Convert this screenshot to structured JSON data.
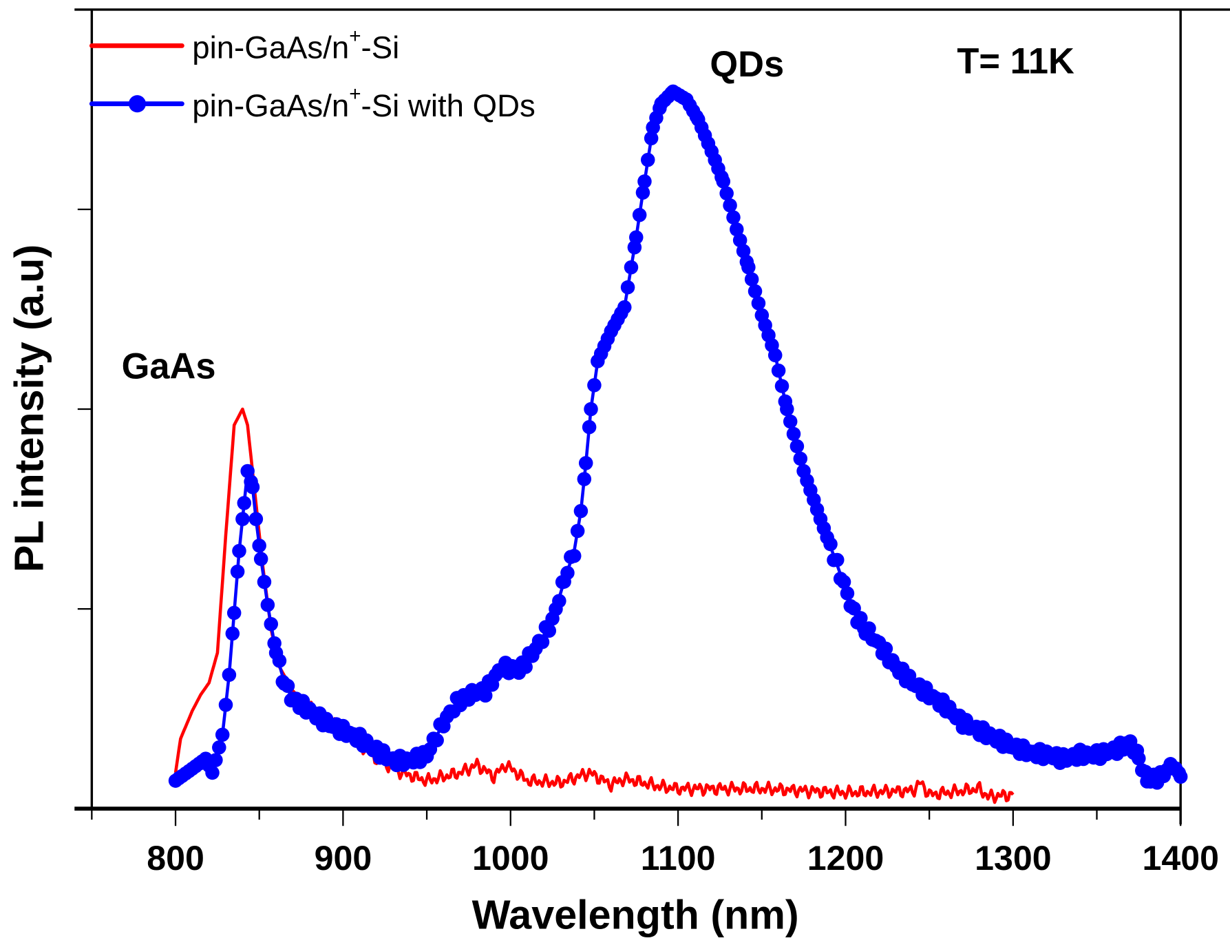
{
  "chart_data": {
    "type": "line",
    "title": "",
    "xlabel": "Wavelength (nm)",
    "ylabel": "PL intensity (a.u)",
    "xlim": [
      750,
      1400
    ],
    "ylim": [
      0,
      4
    ],
    "xticks": [
      800,
      900,
      1000,
      1100,
      1200,
      1300,
      1400
    ],
    "xtick_labels": [
      "800",
      "900",
      "1000",
      "1100",
      "1200",
      "1300",
      "1400"
    ],
    "grid": false,
    "legend_position": "top-left",
    "annotations": {
      "gaas": "GaAs",
      "qds": "QDs",
      "temperature": "T= 11K"
    },
    "series": [
      {
        "label_base": "pin-GaAs/n",
        "label_sup": "+",
        "label_rest": "-Si",
        "color": "#ff0000",
        "marker": "none",
        "x": [
          800,
          803,
          810,
          815,
          820,
          825,
          830,
          835,
          840,
          843,
          848,
          852,
          857,
          862,
          870,
          880,
          900,
          920,
          935,
          950,
          970,
          980,
          990,
          997,
          1010,
          1030,
          1047,
          1060,
          1068,
          1090,
          1100,
          1150,
          1200,
          1240,
          1245,
          1250,
          1280,
          1285,
          1300
        ],
        "y": [
          0.18,
          0.35,
          0.49,
          0.57,
          0.63,
          0.78,
          1.37,
          1.92,
          2.0,
          1.92,
          1.53,
          1.22,
          0.9,
          0.71,
          0.59,
          0.51,
          0.39,
          0.25,
          0.18,
          0.14,
          0.18,
          0.22,
          0.16,
          0.22,
          0.14,
          0.13,
          0.18,
          0.12,
          0.15,
          0.11,
          0.1,
          0.1,
          0.08,
          0.09,
          0.13,
          0.07,
          0.1,
          0.06,
          0.07
        ]
      },
      {
        "label_base": "pin-GaAs/n",
        "label_sup": "+",
        "label_rest": "-Si with QDs",
        "color": "#0000ff",
        "marker": "circle",
        "x": [
          800,
          810,
          818,
          822,
          828,
          832,
          835,
          838,
          841,
          843,
          846,
          848,
          851,
          855,
          860,
          865,
          870,
          880,
          890,
          900,
          910,
          920,
          930,
          940,
          950,
          960,
          968,
          975,
          985,
          995,
          1005,
          1015,
          1025,
          1032,
          1038,
          1042,
          1045,
          1048,
          1052,
          1060,
          1068,
          1075,
          1080,
          1085,
          1090,
          1097,
          1105,
          1112,
          1120,
          1127,
          1135,
          1142,
          1150,
          1158,
          1165,
          1175,
          1185,
          1195,
          1205,
          1212,
          1220,
          1230,
          1240,
          1250,
          1260,
          1270,
          1280,
          1290,
          1300,
          1310,
          1320,
          1330,
          1340,
          1350,
          1360,
          1370,
          1375,
          1380,
          1388,
          1395,
          1400
        ],
        "y": [
          0.14,
          0.2,
          0.25,
          0.18,
          0.37,
          0.67,
          0.98,
          1.29,
          1.53,
          1.69,
          1.61,
          1.45,
          1.25,
          1.02,
          0.78,
          0.63,
          0.55,
          0.49,
          0.43,
          0.39,
          0.35,
          0.29,
          0.24,
          0.24,
          0.27,
          0.43,
          0.53,
          0.57,
          0.59,
          0.71,
          0.69,
          0.8,
          0.94,
          1.14,
          1.29,
          1.49,
          1.73,
          2.0,
          2.24,
          2.39,
          2.51,
          2.86,
          3.14,
          3.41,
          3.53,
          3.59,
          3.55,
          3.45,
          3.29,
          3.14,
          2.9,
          2.71,
          2.47,
          2.27,
          2.0,
          1.69,
          1.45,
          1.22,
          0.98,
          0.9,
          0.82,
          0.71,
          0.63,
          0.57,
          0.51,
          0.43,
          0.39,
          0.35,
          0.31,
          0.28,
          0.27,
          0.25,
          0.27,
          0.27,
          0.29,
          0.33,
          0.25,
          0.14,
          0.16,
          0.22,
          0.16
        ]
      }
    ]
  }
}
